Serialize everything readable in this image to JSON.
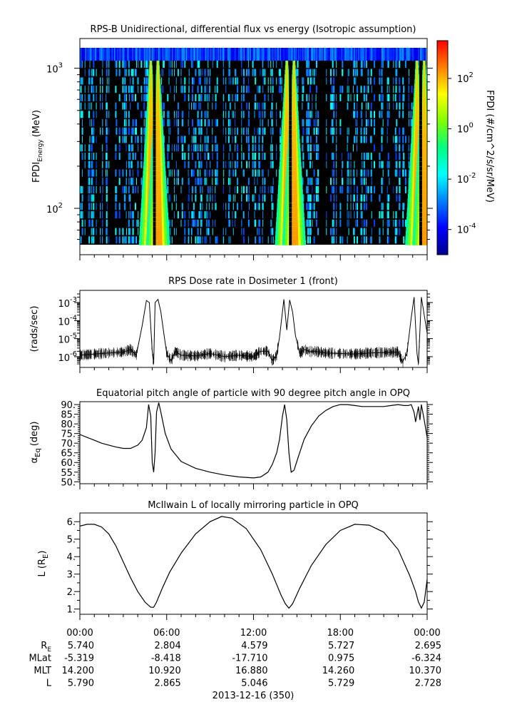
{
  "time_axis": {
    "ticks": [
      "00:00",
      "06:00",
      "12:00",
      "18:00",
      "00:00"
    ],
    "date_label": "2013-12-16 (350)",
    "ephemeris": [
      {
        "label": "R",
        "sub": "E",
        "values": [
          "5.740",
          "2.804",
          "4.579",
          "5.727",
          "2.695"
        ]
      },
      {
        "label": "MLat",
        "sub": "",
        "values": [
          "-5.319",
          "-8.418",
          "-17.710",
          "0.975",
          "-6.324"
        ]
      },
      {
        "label": "MLT",
        "sub": "",
        "values": [
          "14.200",
          "10.920",
          "16.880",
          "14.260",
          "10.370"
        ]
      },
      {
        "label": "L",
        "sub": "",
        "values": [
          "5.790",
          "2.865",
          "5.046",
          "5.729",
          "2.728"
        ]
      }
    ]
  },
  "chart_data": [
    {
      "type": "heatmap",
      "title": "RPS-B  Unidirectional, differential flux vs energy (Isotropic assumption)",
      "ylabel": {
        "main": "FPDI",
        "sub": "Energy",
        "unit": "(MeV)"
      },
      "yscale": "log",
      "ylim": [
        55,
        1400
      ],
      "ytick_labels": [
        {
          "base": "10",
          "exp": "3",
          "value": 1000
        },
        {
          "base": "10",
          "exp": "2",
          "value": 100
        }
      ],
      "colorbar": {
        "label": "FPDI (#/cm^2/s/sr/MeV)",
        "scale": "log",
        "range": [
          -5,
          3.5
        ],
        "ticks": [
          {
            "base": "10",
            "exp": "2",
            "value": 2
          },
          {
            "base": "10",
            "exp": "0",
            "value": 0
          },
          {
            "base": "10",
            "exp": "-2",
            "value": -2
          },
          {
            "base": "10",
            "exp": "-4",
            "value": -4
          }
        ],
        "colormap": [
          "#00008f",
          "#0000ff",
          "#0080ff",
          "#00ffff",
          "#00ff80",
          "#80ff00",
          "#ffff00",
          "#ff8000",
          "#ff0000"
        ]
      },
      "belt_passes_hours": [
        4.9,
        5.4,
        14.3,
        14.8,
        23.3,
        23.8
      ],
      "background": "#000000"
    },
    {
      "type": "line",
      "title": "RPS  Dose rate in Dosimeter 1 (front)",
      "ylabel": "(rads/sec)",
      "yscale": "log",
      "ylim": [
        4e-07,
        0.003
      ],
      "ytick_labels": [
        {
          "base": "10",
          "exp": "-3",
          "value": -3
        },
        {
          "base": "10",
          "exp": "-4",
          "value": -4
        },
        {
          "base": "10",
          "exp": "-5",
          "value": -5
        },
        {
          "base": "10",
          "exp": "-6",
          "value": -6
        }
      ],
      "xlim_hours": [
        0,
        24
      ],
      "x": [
        0,
        1,
        2,
        3,
        3.5,
        3.9,
        4.3,
        4.6,
        4.8,
        5.0,
        5.1,
        5.2,
        5.4,
        5.6,
        5.8,
        6.0,
        6.3,
        6.6,
        7,
        8,
        9,
        10,
        11,
        12,
        12.5,
        13,
        13.3,
        13.6,
        13.8,
        14.1,
        14.3,
        14.5,
        14.7,
        14.9,
        15.2,
        15.5,
        15.9,
        16.2,
        17,
        18,
        19,
        20,
        21,
        22,
        22.3,
        22.6,
        22.9,
        23.1,
        23.3,
        23.4,
        23.6,
        23.8,
        24
      ],
      "y": [
        1.2e-06,
        1.4e-06,
        1.6e-06,
        1.8e-06,
        2.5e-06,
        1.2e-06,
        5e-05,
        0.0013,
        0.001,
        2e-06,
        4e-07,
        0.001,
        0.0015,
        0.0003,
        2e-05,
        1.5e-06,
        6e-07,
        2e-06,
        1.2e-06,
        1.1e-06,
        1.5e-06,
        1e-06,
        1.2e-06,
        1e-06,
        2e-06,
        2e-06,
        6e-07,
        1.2e-06,
        1.2e-05,
        0.0015,
        3e-05,
        0.0014,
        0.0003,
        1.5e-05,
        1.5e-06,
        2.5e-06,
        1.9e-06,
        2e-06,
        1.6e-06,
        1.5e-06,
        1.4e-06,
        1.6e-06,
        1.7e-06,
        1.8e-06,
        5e-07,
        1.5e-06,
        0.00015,
        0.002,
        1.5e-06,
        4e-07,
        0.002,
        0.0002,
        2e-05
      ]
    },
    {
      "type": "line",
      "title": "Equatorial pitch angle of particle with 90 degree pitch angle in OPQ",
      "ylabel": {
        "main": "α",
        "sub": "Eq",
        "unit": "(deg)"
      },
      "ylim": [
        49,
        91.5
      ],
      "yticks": [
        "90.",
        "85.",
        "80.",
        "75.",
        "70.",
        "65.",
        "60.",
        "55.",
        "50."
      ],
      "xlim_hours": [
        0,
        24
      ],
      "x": [
        0,
        0.5,
        1,
        1.5,
        2,
        2.5,
        3,
        3.5,
        4,
        4.3,
        4.6,
        4.75,
        4.9,
        5.0,
        5.1,
        5.2,
        5.3,
        5.45,
        5.6,
        5.9,
        6.3,
        7,
        8,
        9,
        10,
        11,
        12,
        12.5,
        13,
        13.3,
        13.6,
        13.8,
        14.0,
        14.15,
        14.3,
        14.45,
        14.6,
        14.8,
        15.1,
        15.5,
        16,
        16.5,
        17,
        17.5,
        18,
        18.5,
        19,
        19.5,
        20,
        21,
        21.5,
        22,
        22.4,
        22.7,
        22.9,
        23.1,
        23.2,
        23.4,
        23.5,
        23.6,
        23.8,
        24
      ],
      "y": [
        74.5,
        73,
        71.5,
        70,
        69,
        68,
        67.3,
        67.3,
        69,
        71.5,
        78,
        90,
        84,
        60,
        55,
        65,
        86,
        91,
        86,
        75,
        67,
        60.5,
        57,
        55,
        53.5,
        52.5,
        52,
        52.5,
        55,
        59,
        65,
        72,
        84,
        90,
        82,
        65,
        55,
        56,
        63,
        72,
        79,
        84,
        87,
        89,
        90,
        90,
        89.5,
        89,
        89,
        89,
        89.5,
        90,
        89.5,
        89.5,
        90,
        86,
        81,
        89,
        82,
        90,
        82,
        73
      ]
    },
    {
      "type": "line",
      "title": "McIlwain L of locally mirroring particle in OPQ",
      "ylabel": {
        "main": "L (R",
        "sub": "E",
        "unit": ")"
      },
      "ylim": [
        0.7,
        6.5
      ],
      "yticks": [
        "6.",
        "5.",
        "4.",
        "3.",
        "2.",
        "1."
      ],
      "xlim_hours": [
        0,
        24
      ],
      "x": [
        0,
        0.5,
        1,
        1.5,
        2,
        2.5,
        3,
        3.5,
        4,
        4.5,
        4.9,
        5.1,
        5.3,
        5.7,
        6.2,
        7,
        8,
        9,
        9.8,
        10.5,
        11.5,
        12.5,
        13.3,
        13.9,
        14.2,
        14.45,
        14.7,
        15.2,
        16,
        17,
        18,
        19,
        20,
        21,
        22,
        22.8,
        23.2,
        23.4,
        23.6,
        23.8,
        24
      ],
      "y": [
        5.75,
        5.85,
        5.85,
        5.7,
        5.3,
        4.6,
        3.7,
        2.8,
        2.0,
        1.4,
        1.1,
        1.1,
        1.4,
        2.2,
        3.1,
        4.2,
        5.3,
        6.0,
        6.3,
        6.2,
        5.6,
        4.4,
        3.0,
        1.8,
        1.3,
        1.05,
        1.3,
        2.2,
        3.5,
        4.7,
        5.5,
        5.85,
        5.8,
        5.4,
        4.4,
        2.9,
        2.0,
        1.4,
        1.05,
        1.4,
        2.7
      ]
    }
  ]
}
